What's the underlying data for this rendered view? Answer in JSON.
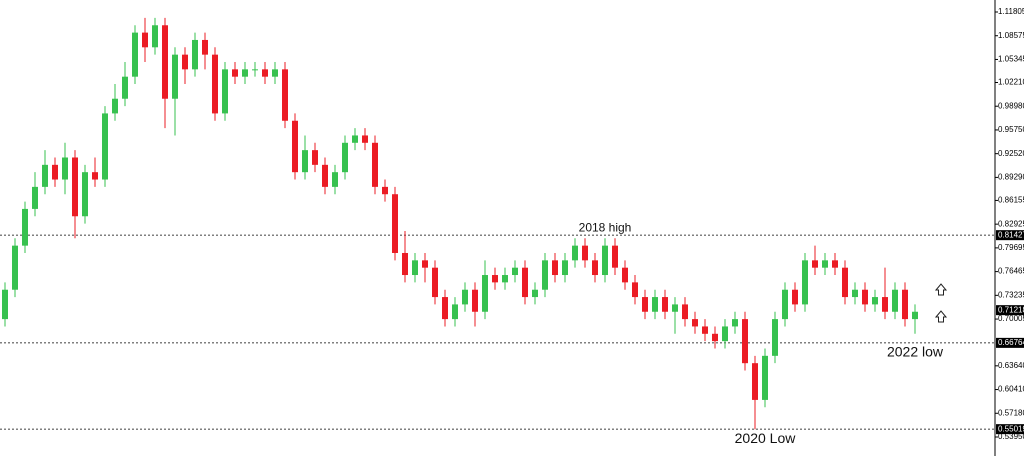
{
  "chart_data": {
    "type": "candlestick",
    "up_color": "#37c14f",
    "down_color": "#eb1c24",
    "ylim": [
      0.51364,
      1.13439
    ],
    "yticks": [
      1.11805,
      1.08575,
      1.05345,
      {
        "value": 1.0221,
        "label": "1.02210"
      },
      {
        "value": 0.9898,
        "label": "0.98980"
      },
      {
        "value": 0.9575,
        "label": "0.95750"
      },
      {
        "value": 0.9252,
        "label": "0.92520"
      },
      {
        "value": 0.8929,
        "label": "0.89290"
      },
      0.86155,
      0.82925,
      0.79695,
      0.76465,
      0.73235,
      0.70005,
      {
        "value": 0.6364,
        "label": "0.63640"
      },
      {
        "value": 0.6041,
        "label": "0.60410"
      },
      {
        "value": 0.5718,
        "label": "0.57180"
      },
      {
        "value": 0.5395,
        "label": "0.53950"
      }
    ],
    "levels": [
      {
        "value": 0.81427,
        "annotation": "2018 high"
      },
      {
        "value": 0.66764,
        "annotation": "2022 low"
      },
      {
        "value": 0.55019,
        "annotation": "2020 Low"
      }
    ],
    "last_price": 0.71218,
    "open": [
      0.7,
      0.74,
      0.8,
      0.85,
      0.88,
      0.91,
      0.89,
      0.92,
      0.84,
      0.9,
      0.89,
      0.98,
      1.0,
      1.03,
      1.09,
      1.07,
      1.1,
      1.0,
      1.06,
      1.04,
      1.08,
      1.06,
      0.98,
      1.04,
      1.03,
      1.04,
      1.04,
      1.03,
      1.04,
      0.97,
      0.9,
      0.93,
      0.91,
      0.88,
      0.9,
      0.94,
      0.95,
      0.94,
      0.88,
      0.87,
      0.79,
      0.76,
      0.78,
      0.77,
      0.73,
      0.7,
      0.72,
      0.74,
      0.71,
      0.76,
      0.75,
      0.76,
      0.77,
      0.73,
      0.74,
      0.78,
      0.76,
      0.78,
      0.8,
      0.78,
      0.76,
      0.8,
      0.77,
      0.75,
      0.73,
      0.71,
      0.73,
      0.71,
      0.72,
      0.7,
      0.69,
      0.68,
      0.67,
      0.69,
      0.7,
      0.64,
      0.59,
      0.65,
      0.7,
      0.74,
      0.72,
      0.78,
      0.77,
      0.78,
      0.77,
      0.73,
      0.74,
      0.72,
      0.73,
      0.71,
      0.74,
      0.7
    ],
    "high": [
      0.75,
      0.81,
      0.86,
      0.9,
      0.93,
      0.92,
      0.94,
      0.93,
      0.91,
      0.92,
      0.99,
      1.02,
      1.05,
      1.1,
      1.11,
      1.11,
      1.11,
      1.07,
      1.07,
      1.09,
      1.09,
      1.07,
      1.05,
      1.05,
      1.05,
      1.05,
      1.05,
      1.05,
      1.05,
      0.98,
      0.95,
      0.94,
      0.92,
      0.91,
      0.95,
      0.96,
      0.96,
      0.95,
      0.89,
      0.88,
      0.82,
      0.79,
      0.79,
      0.78,
      0.74,
      0.73,
      0.75,
      0.75,
      0.78,
      0.77,
      0.77,
      0.78,
      0.78,
      0.75,
      0.79,
      0.79,
      0.79,
      0.81,
      0.81,
      0.79,
      0.81,
      0.81,
      0.78,
      0.76,
      0.74,
      0.74,
      0.74,
      0.73,
      0.73,
      0.71,
      0.7,
      0.69,
      0.7,
      0.71,
      0.71,
      0.65,
      0.66,
      0.71,
      0.75,
      0.75,
      0.79,
      0.8,
      0.79,
      0.79,
      0.78,
      0.75,
      0.75,
      0.74,
      0.77,
      0.75,
      0.75,
      0.72
    ],
    "low": [
      0.69,
      0.73,
      0.79,
      0.84,
      0.87,
      0.88,
      0.87,
      0.81,
      0.83,
      0.88,
      0.88,
      0.97,
      0.99,
      1.02,
      1.05,
      1.06,
      0.96,
      0.95,
      1.02,
      1.03,
      1.04,
      0.97,
      0.97,
      1.02,
      1.02,
      1.03,
      1.02,
      1.02,
      0.96,
      0.89,
      0.89,
      0.9,
      0.87,
      0.87,
      0.89,
      0.93,
      0.93,
      0.87,
      0.86,
      0.78,
      0.75,
      0.75,
      0.75,
      0.72,
      0.69,
      0.69,
      0.71,
      0.69,
      0.7,
      0.74,
      0.74,
      0.75,
      0.72,
      0.72,
      0.73,
      0.75,
      0.75,
      0.77,
      0.77,
      0.75,
      0.75,
      0.76,
      0.74,
      0.72,
      0.7,
      0.7,
      0.7,
      0.68,
      0.69,
      0.68,
      0.67,
      0.66,
      0.66,
      0.68,
      0.63,
      0.55,
      0.58,
      0.64,
      0.69,
      0.71,
      0.71,
      0.76,
      0.76,
      0.76,
      0.72,
      0.72,
      0.71,
      0.71,
      0.7,
      0.7,
      0.69,
      0.68
    ],
    "close": [
      0.74,
      0.8,
      0.85,
      0.88,
      0.91,
      0.89,
      0.92,
      0.84,
      0.9,
      0.89,
      0.98,
      1.0,
      1.03,
      1.09,
      1.07,
      1.1,
      1.0,
      1.06,
      1.04,
      1.08,
      1.06,
      0.98,
      1.04,
      1.03,
      1.04,
      1.04,
      1.03,
      1.04,
      0.97,
      0.9,
      0.93,
      0.91,
      0.88,
      0.9,
      0.94,
      0.95,
      0.94,
      0.88,
      0.87,
      0.79,
      0.76,
      0.78,
      0.77,
      0.73,
      0.7,
      0.72,
      0.74,
      0.71,
      0.76,
      0.75,
      0.76,
      0.77,
      0.73,
      0.74,
      0.78,
      0.76,
      0.78,
      0.8,
      0.78,
      0.76,
      0.8,
      0.77,
      0.75,
      0.73,
      0.71,
      0.73,
      0.71,
      0.72,
      0.7,
      0.69,
      0.68,
      0.67,
      0.69,
      0.7,
      0.64,
      0.59,
      0.65,
      0.7,
      0.74,
      0.72,
      0.78,
      0.77,
      0.78,
      0.77,
      0.73,
      0.74,
      0.72,
      0.73,
      0.71,
      0.74,
      0.7,
      0.71
    ]
  }
}
